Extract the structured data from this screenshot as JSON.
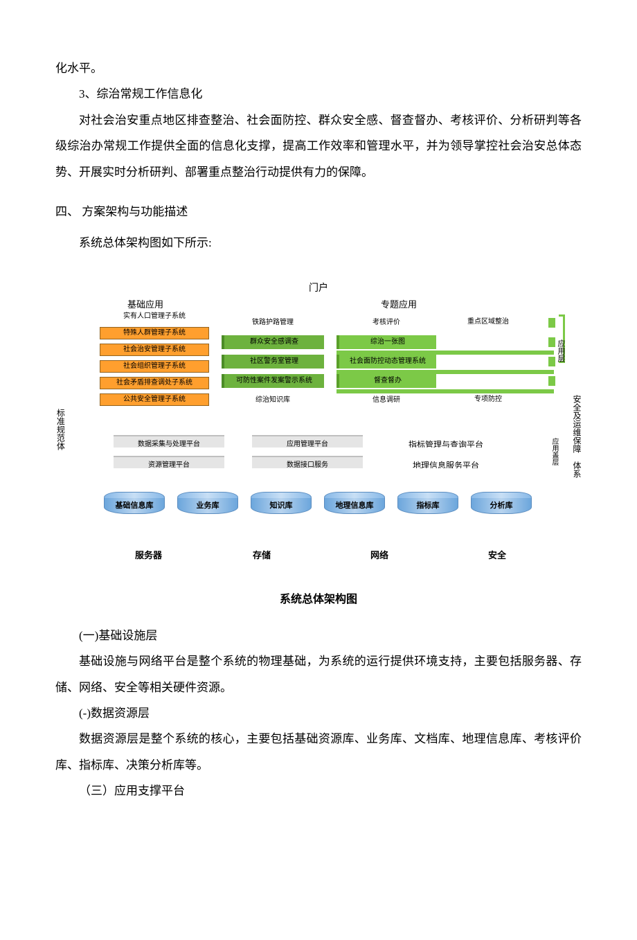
{
  "text": {
    "line0": "化水平。",
    "line1": "3、综治常规工作信息化",
    "para2": "对社会治安重点地区排查整治、社会面防控、群众安全感、督查督办、考核评价、分析研判等各级综治办常规工作提供全面的信息化支撑，提高工作效率和管理水平，并为领导掌控社会治安总体态势、开展实时分析研判、部署重点整治行动提供有力的保障。",
    "heading4": "四、 方案架构与功能描述",
    "para3": "系统总体架构图如下所示:",
    "caption": "系统总体架构图",
    "sub1_title": "(一)基础设施层",
    "sub1_para": "基础设施与网络平台是整个系统的物理基础，为系统的运行提供环境支持，主要包括服务器、存储、网络、安全等相关硬件资源。",
    "sub2_title": "(-)数据资源层",
    "sub2_para": "数据资源层是整个系统的核心，主要包括基础资源库、业务库、文档库、地理信息库、考核评价库、指标库、决策分析库等。",
    "sub3_title": "（三）应用支撑平台"
  },
  "diagram": {
    "top_title": "门户",
    "left_header": "基础应用",
    "right_header": "专题应用",
    "left_vert": "标准规范体",
    "right_vert": "安全及运维保障　体系",
    "app_layer_label": "应用层",
    "support_layer_label": "应用盖层",
    "colors": {
      "orange_bg": "#ff9f2e",
      "orange_border": "#93631e",
      "green_bg": "#7cc947",
      "green_border": "#5aa02a",
      "green_dark": "#6db23e",
      "gray_bg": "#e5e5e5",
      "gray_border": "#bfbfbf",
      "cyl_light": "#c8dff5",
      "cyl_dark": "#6ca6dc",
      "cyl_border": "#5a8cbf"
    },
    "left_col": [
      {
        "label": "实有人口管理子系统",
        "style": "plain"
      },
      {
        "label": "特殊人群管理子系统",
        "style": "orange"
      },
      {
        "label": "社会治安管理子系统",
        "style": "orange"
      },
      {
        "label": "社会组织管理子系统",
        "style": "orange"
      },
      {
        "label": "社会矛盾排查调处子系统",
        "style": "orange"
      },
      {
        "label": "公共安全管理子系统",
        "style": "orange"
      }
    ],
    "mid_col": [
      {
        "label": "铁路护路管理",
        "style": "plain"
      },
      {
        "label": "群众安全感调查",
        "style": "green-dark"
      },
      {
        "label": "社区警务室管理",
        "style": "green-dark"
      },
      {
        "label": "可防性案件发案警示系统",
        "style": "green-dark"
      },
      {
        "label": "综治知识库",
        "style": "plain"
      }
    ],
    "right_col": [
      {
        "label": "考核评价",
        "style": "plain"
      },
      {
        "label": "综治一张图",
        "style": "green"
      },
      {
        "label": "社会面防控动态管理系统",
        "style": "green"
      },
      {
        "label": "督查督办",
        "style": "green"
      },
      {
        "label": "信息调研",
        "style": "plain"
      }
    ],
    "far_right_col": [
      {
        "label": "重点区域整治",
        "style": "plain"
      },
      {
        "label": "",
        "style": "green"
      },
      {
        "label": "",
        "style": "green"
      },
      {
        "label": "",
        "style": "green"
      },
      {
        "label": "专项防控",
        "style": "plain"
      }
    ],
    "support_row": [
      {
        "label": "数据采集与处理平台",
        "label2": "资源管理平台"
      },
      {
        "label": "应用管理平台",
        "label2": "数据接口服务"
      },
      {
        "label": "指标管理与查询平台",
        "label2": "地理信息服务平台"
      }
    ],
    "cylinders": [
      "基础信息库",
      "业务库",
      "知识库",
      "地理信息库",
      "指标库",
      "分析库"
    ],
    "bottom_row": [
      "服务器",
      "存储",
      "网络",
      "安全"
    ]
  }
}
